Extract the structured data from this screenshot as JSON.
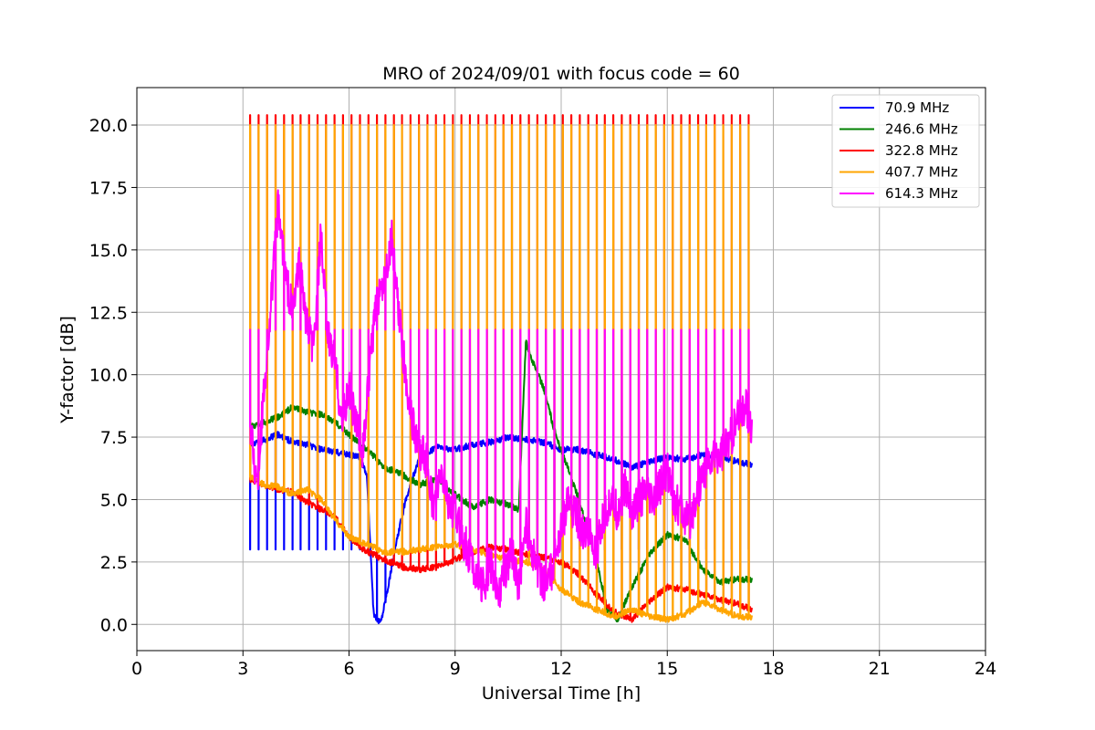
{
  "chart_data": {
    "type": "line",
    "title": "MRO of 2024/09/01 with focus code = 60",
    "xlabel": "Universal Time [h]",
    "ylabel": "Y-factor [dB]",
    "xlim": [
      0,
      24
    ],
    "ylim": [
      -1.05,
      21.5
    ],
    "xticks": [
      0,
      3,
      6,
      9,
      12,
      15,
      18,
      21,
      24
    ],
    "xtick_labels": [
      "0",
      "3",
      "6",
      "9",
      "12",
      "15",
      "18",
      "21",
      "24"
    ],
    "yticks": [
      0.0,
      2.5,
      5.0,
      7.5,
      10.0,
      12.5,
      15.0,
      17.5,
      20.0
    ],
    "ytick_labels": [
      "0.0",
      "2.5",
      "5.0",
      "7.5",
      "10.0",
      "12.5",
      "15.0",
      "17.5",
      "20.0"
    ],
    "grid": true,
    "legend_position": "top-right",
    "spikes": {
      "start": 3.2,
      "end": 17.3,
      "count": 60,
      "series_tops": {
        "70.9 MHz": 3.0,
        "322.8 MHz": 20.4,
        "407.7 MHz": 20.0,
        "614.3 MHz": 11.8
      }
    },
    "series": [
      {
        "name": " 70.9 MHz",
        "color": "#0000ff",
        "x": [
          3.2,
          3.6,
          4.0,
          4.4,
          4.8,
          5.2,
          5.6,
          6.0,
          6.3,
          6.5,
          6.7,
          6.9,
          7.1,
          7.3,
          7.6,
          8.0,
          8.5,
          9.0,
          9.5,
          10.0,
          10.5,
          11.0,
          11.5,
          12.0,
          12.5,
          13.0,
          13.5,
          14.0,
          14.5,
          15.0,
          15.5,
          16.0,
          16.5,
          17.0,
          17.4
        ],
        "y": [
          7.2,
          7.4,
          7.6,
          7.3,
          7.2,
          7.0,
          6.9,
          6.8,
          6.7,
          6.0,
          0.3,
          0.1,
          1.5,
          3.0,
          5.0,
          6.7,
          7.1,
          7.0,
          7.2,
          7.3,
          7.5,
          7.4,
          7.3,
          7.0,
          7.0,
          6.8,
          6.6,
          6.3,
          6.5,
          6.7,
          6.6,
          6.8,
          6.7,
          6.5,
          6.4
        ]
      },
      {
        "name": "246.6 MHz",
        "color": "#008000",
        "x": [
          3.2,
          3.6,
          4.0,
          4.4,
          4.8,
          5.2,
          5.6,
          6.0,
          6.5,
          7.0,
          7.5,
          8.0,
          8.5,
          9.0,
          9.5,
          10.0,
          10.5,
          10.8,
          11.0,
          11.2,
          11.5,
          11.8,
          12.0,
          12.5,
          13.0,
          13.3,
          13.6,
          14.0,
          14.5,
          15.0,
          15.5,
          16.0,
          16.5,
          17.0,
          17.4
        ],
        "y": [
          7.9,
          8.1,
          8.3,
          8.7,
          8.5,
          8.4,
          8.1,
          7.6,
          7.0,
          6.3,
          6.0,
          5.6,
          5.8,
          5.2,
          4.7,
          5.0,
          4.8,
          4.6,
          11.3,
          10.5,
          9.5,
          7.8,
          7.0,
          5.0,
          2.5,
          0.6,
          0.2,
          1.5,
          2.8,
          3.6,
          3.4,
          2.2,
          1.7,
          1.8,
          1.8
        ]
      },
      {
        "name": "322.8 MHz",
        "color": "#ff0000",
        "x": [
          3.2,
          3.6,
          4.0,
          4.4,
          4.8,
          5.2,
          5.6,
          6.0,
          6.5,
          7.0,
          7.5,
          8.0,
          8.5,
          9.0,
          9.5,
          10.0,
          10.5,
          11.0,
          11.5,
          12.0,
          12.5,
          13.0,
          13.5,
          14.0,
          14.5,
          15.0,
          15.5,
          16.0,
          16.5,
          17.0,
          17.4
        ],
        "y": [
          5.8,
          5.6,
          5.4,
          5.3,
          4.9,
          4.6,
          4.3,
          3.5,
          2.9,
          2.6,
          2.3,
          2.2,
          2.3,
          2.6,
          2.9,
          3.1,
          3.0,
          2.8,
          2.7,
          2.5,
          2.0,
          1.2,
          0.5,
          0.2,
          0.9,
          1.5,
          1.4,
          1.2,
          1.0,
          0.8,
          0.6
        ]
      },
      {
        "name": "407.7 MHz",
        "color": "#ffa500",
        "x": [
          3.2,
          3.6,
          4.0,
          4.4,
          4.8,
          5.2,
          5.6,
          6.0,
          6.5,
          7.0,
          7.5,
          8.0,
          8.5,
          9.0,
          9.5,
          10.0,
          10.5,
          11.0,
          11.5,
          12.0,
          12.5,
          13.0,
          13.5,
          14.0,
          14.5,
          15.0,
          15.5,
          16.0,
          16.5,
          17.0,
          17.4
        ],
        "y": [
          5.9,
          5.6,
          5.5,
          5.2,
          5.4,
          5.0,
          4.2,
          3.5,
          3.2,
          2.9,
          2.9,
          3.0,
          3.1,
          3.2,
          3.0,
          2.8,
          2.6,
          2.5,
          2.2,
          1.4,
          0.9,
          0.6,
          0.3,
          0.6,
          0.3,
          0.2,
          0.4,
          0.9,
          0.6,
          0.3,
          0.3
        ]
      },
      {
        "name": "614.3 MHz",
        "color": "#ff00ff",
        "x": [
          3.2,
          3.4,
          3.6,
          3.8,
          4.0,
          4.2,
          4.4,
          4.6,
          4.8,
          5.0,
          5.2,
          5.4,
          5.6,
          5.8,
          6.0,
          6.2,
          6.4,
          6.6,
          6.8,
          7.0,
          7.2,
          7.4,
          7.6,
          7.8,
          8.0,
          8.2,
          8.4,
          8.6,
          8.8,
          9.0,
          9.2,
          9.4,
          9.6,
          9.8,
          10.0,
          10.2,
          10.4,
          10.6,
          10.8,
          11.0,
          11.2,
          11.4,
          11.6,
          11.8,
          12.0,
          12.2,
          12.4,
          12.6,
          12.8,
          13.0,
          13.2,
          13.4,
          13.6,
          13.8,
          14.0,
          14.2,
          14.4,
          14.6,
          14.8,
          15.0,
          15.2,
          15.4,
          15.6,
          15.8,
          16.0,
          16.2,
          16.4,
          16.6,
          16.8,
          17.0,
          17.2,
          17.4
        ],
        "y": [
          8.0,
          5.5,
          9.5,
          13.0,
          16.8,
          14.0,
          12.5,
          14.5,
          12.0,
          11.0,
          15.5,
          11.5,
          10.5,
          8.0,
          9.5,
          8.0,
          7.0,
          10.5,
          13.0,
          14.0,
          15.5,
          12.5,
          10.0,
          8.0,
          7.0,
          6.5,
          4.5,
          6.0,
          5.0,
          4.5,
          3.5,
          2.8,
          2.0,
          1.5,
          2.5,
          1.2,
          2.0,
          3.0,
          1.5,
          4.0,
          2.8,
          2.0,
          1.5,
          2.5,
          4.0,
          4.8,
          4.5,
          3.8,
          3.5,
          3.0,
          4.2,
          5.0,
          4.5,
          5.5,
          4.5,
          5.0,
          5.2,
          4.8,
          5.5,
          6.2,
          5.0,
          4.5,
          4.0,
          5.0,
          6.0,
          6.5,
          6.8,
          7.0,
          7.5,
          8.2,
          8.8,
          7.8
        ]
      }
    ]
  }
}
